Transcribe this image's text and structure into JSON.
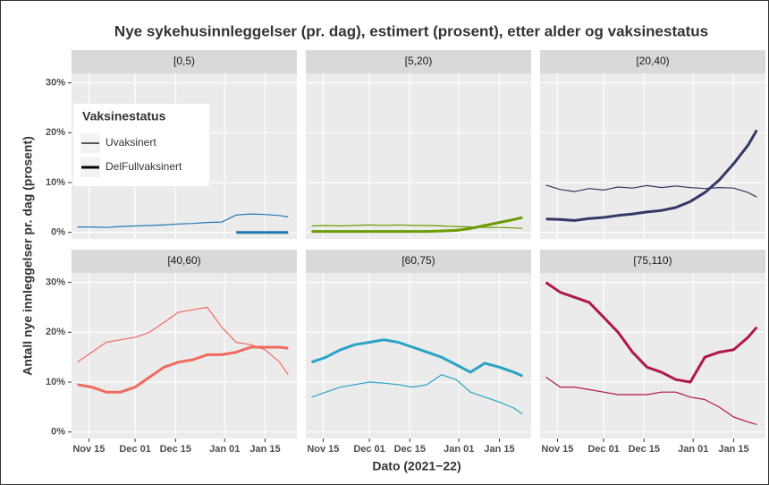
{
  "chart_data": {
    "type": "line",
    "title": "Nye sykehusinnleggelser (pr. dag), estimert (prosent), etter alder og vaksinestatus",
    "xlabel": "Dato (2021−22)",
    "ylabel": "Antall nye innleggelser pr. dag (prosent)",
    "x": [
      "Nov 11",
      "Nov 16",
      "Nov 21",
      "Nov 26",
      "Dec 01",
      "Dec 06",
      "Dec 11",
      "Dec 16",
      "Dec 21",
      "Dec 26",
      "Dec 31",
      "Jan 05",
      "Jan 10",
      "Jan 15",
      "Jan 20",
      "Jan 23"
    ],
    "xlim": [
      "Nov 09",
      "Jan 26"
    ],
    "xticks": [
      "Nov 15",
      "Dec 01",
      "Dec 15",
      "Jan 01",
      "Jan 15"
    ],
    "ylim": [
      -1.3,
      31.9
    ],
    "yticks": [
      {
        "value": 0,
        "label": "0%"
      },
      {
        "value": 10,
        "label": "10%"
      },
      {
        "value": 20,
        "label": "20%"
      },
      {
        "value": 30,
        "label": "30%"
      }
    ],
    "grid": true,
    "legend": {
      "title": "Vaksinestatus",
      "position": "top-left"
    },
    "facets": [
      {
        "label": "[0,5)",
        "series": [
          {
            "name": "Uvaksinert",
            "color": "#1f78b4",
            "width": 1.2,
            "values": [
              1.1,
              1.1,
              1.0,
              1.2,
              1.3,
              1.4,
              1.5,
              1.7,
              1.8,
              2.0,
              2.1,
              3.5,
              3.7,
              3.6,
              3.4,
              3.1
            ]
          },
          {
            "name": "DelFullvaksinert",
            "color": "#1f78b4",
            "width": 3,
            "values": [
              null,
              null,
              null,
              null,
              null,
              null,
              null,
              null,
              null,
              null,
              null,
              0,
              0,
              0,
              0,
              0
            ]
          }
        ]
      },
      {
        "label": "[5,20)",
        "series": [
          {
            "name": "Uvaksinert",
            "color": "#6b9a00",
            "width": 1.2,
            "values": [
              1.3,
              1.4,
              1.3,
              1.4,
              1.5,
              1.4,
              1.5,
              1.4,
              1.4,
              1.3,
              1.2,
              1.1,
              1.0,
              1.0,
              0.9,
              0.8
            ]
          },
          {
            "name": "DelFullvaksinert",
            "color": "#6b9a00",
            "width": 3,
            "values": [
              0.2,
              0.2,
              0.2,
              0.2,
              0.2,
              0.2,
              0.2,
              0.2,
              0.2,
              0.3,
              0.4,
              0.8,
              1.4,
              2.0,
              2.6,
              3.0
            ]
          }
        ]
      },
      {
        "label": "[20,40)",
        "series": [
          {
            "name": "Uvaksinert",
            "color": "#353866",
            "width": 1.2,
            "values": [
              9.5,
              8.6,
              8.2,
              8.8,
              8.5,
              9.1,
              8.9,
              9.4,
              9.0,
              9.3,
              9.0,
              8.8,
              9.0,
              8.9,
              8.0,
              7.1
            ]
          },
          {
            "name": "DelFullvaksinert",
            "color": "#353866",
            "width": 3,
            "values": [
              2.7,
              2.6,
              2.4,
              2.8,
              3.0,
              3.4,
              3.7,
              4.1,
              4.4,
              5.0,
              6.2,
              8.0,
              10.5,
              13.8,
              17.5,
              20.5
            ]
          }
        ]
      },
      {
        "label": "[40,60)",
        "series": [
          {
            "name": "Uvaksinert",
            "color": "#f06a5e",
            "width": 1.2,
            "values": [
              14,
              16,
              18,
              18.5,
              19,
              20,
              22,
              24,
              24.5,
              25,
              21,
              18,
              17.5,
              16.5,
              14,
              11.5
            ]
          },
          {
            "name": "DelFullvaksinert",
            "color": "#f06a5e",
            "width": 3,
            "values": [
              9.5,
              9,
              8,
              8,
              9,
              11,
              13,
              14,
              14.5,
              15.5,
              15.5,
              16,
              17,
              17,
              17,
              16.8
            ]
          }
        ]
      },
      {
        "label": "[60,75)",
        "series": [
          {
            "name": "Uvaksinert",
            "color": "#2aa3c6",
            "width": 1.2,
            "values": [
              7,
              8,
              9,
              9.5,
              10,
              9.8,
              9.5,
              9,
              9.5,
              11.5,
              10.5,
              8,
              7,
              6,
              4.8,
              3.6
            ]
          },
          {
            "name": "DelFullvaksinert",
            "color": "#2aa3c6",
            "width": 3,
            "values": [
              14,
              15,
              16.5,
              17.5,
              18,
              18.5,
              18,
              17,
              16,
              15,
              13.5,
              12,
              13.8,
              13,
              12,
              11.2
            ]
          }
        ]
      },
      {
        "label": "[75,110)",
        "series": [
          {
            "name": "Uvaksinert",
            "color": "#b0174a",
            "width": 1.2,
            "values": [
              11,
              9,
              9,
              8.5,
              8,
              7.5,
              7.5,
              7.5,
              8,
              8,
              7,
              6.5,
              5,
              3,
              2,
              1.5
            ]
          },
          {
            "name": "DelFullvaksinert",
            "color": "#b0174a",
            "width": 3,
            "values": [
              30,
              28,
              27,
              26,
              23,
              20,
              16,
              13,
              12,
              10.5,
              10,
              15,
              16,
              16.5,
              19,
              21
            ]
          }
        ]
      }
    ]
  }
}
